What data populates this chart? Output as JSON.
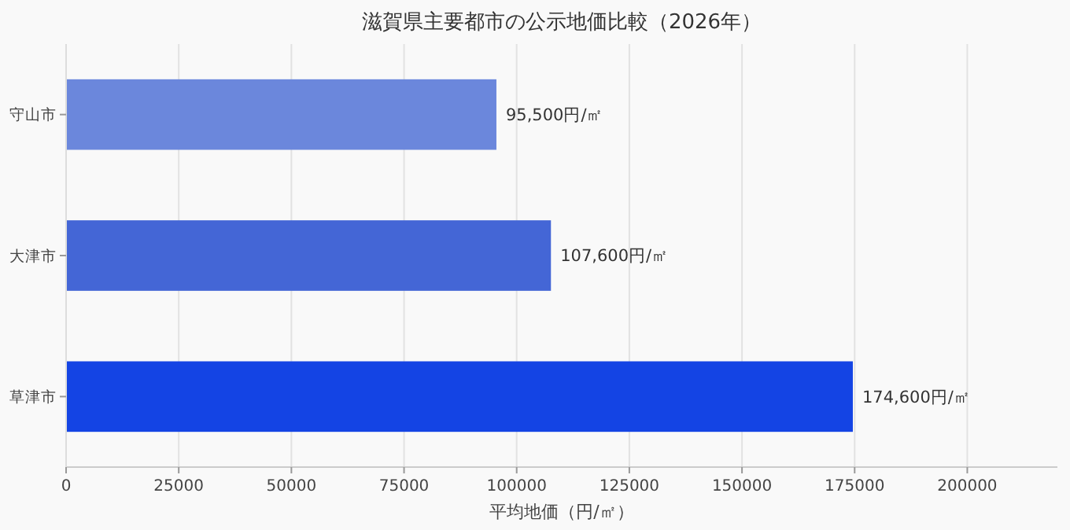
{
  "chart_data": {
    "type": "bar",
    "orientation": "horizontal",
    "title": "滋賀県主要都市の公示地価比較（2026年）",
    "xlabel": "平均地価（円/㎡）",
    "categories": [
      "守山市",
      "大津市",
      "草津市"
    ],
    "values": [
      95500,
      107600,
      174600
    ],
    "colors": [
      "#6b87dc",
      "#4466d6",
      "#1444e4"
    ],
    "value_labels": [
      "95,500円/㎡",
      "107,600円/㎡",
      "174,600円/㎡"
    ],
    "xlim": [
      0,
      220000
    ],
    "xticks": [
      0,
      25000,
      50000,
      75000,
      100000,
      125000,
      150000,
      175000,
      200000
    ],
    "grid": "x"
  }
}
